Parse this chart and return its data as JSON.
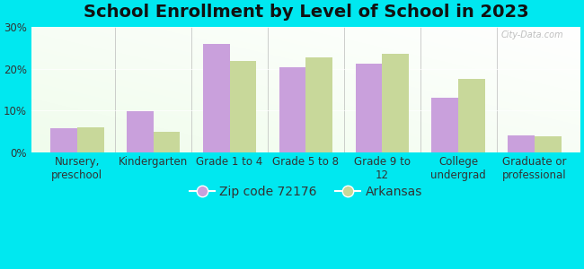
{
  "title": "School Enrollment by Level of School in 2023",
  "categories": [
    "Nursery,\npreschool",
    "Kindergarten",
    "Grade 1 to 4",
    "Grade 5 to 8",
    "Grade 9 to\n12",
    "College\nundergrad",
    "Graduate or\nprofessional"
  ],
  "zip_values": [
    5.8,
    9.7,
    26.0,
    20.3,
    21.2,
    13.0,
    4.0
  ],
  "arkansas_values": [
    6.0,
    4.8,
    21.8,
    22.8,
    23.5,
    17.5,
    3.8
  ],
  "zip_color": "#c9a0dc",
  "arkansas_color": "#c8d89a",
  "background_color": "#00e8f0",
  "ylim": [
    0,
    30
  ],
  "yticks": [
    0,
    10,
    20,
    30
  ],
  "legend_zip_label": "Zip code 72176",
  "legend_ark_label": "Arkansas",
  "bar_width": 0.35,
  "title_fontsize": 14,
  "tick_fontsize": 8.5,
  "legend_fontsize": 10,
  "watermark": "City-Data.com"
}
